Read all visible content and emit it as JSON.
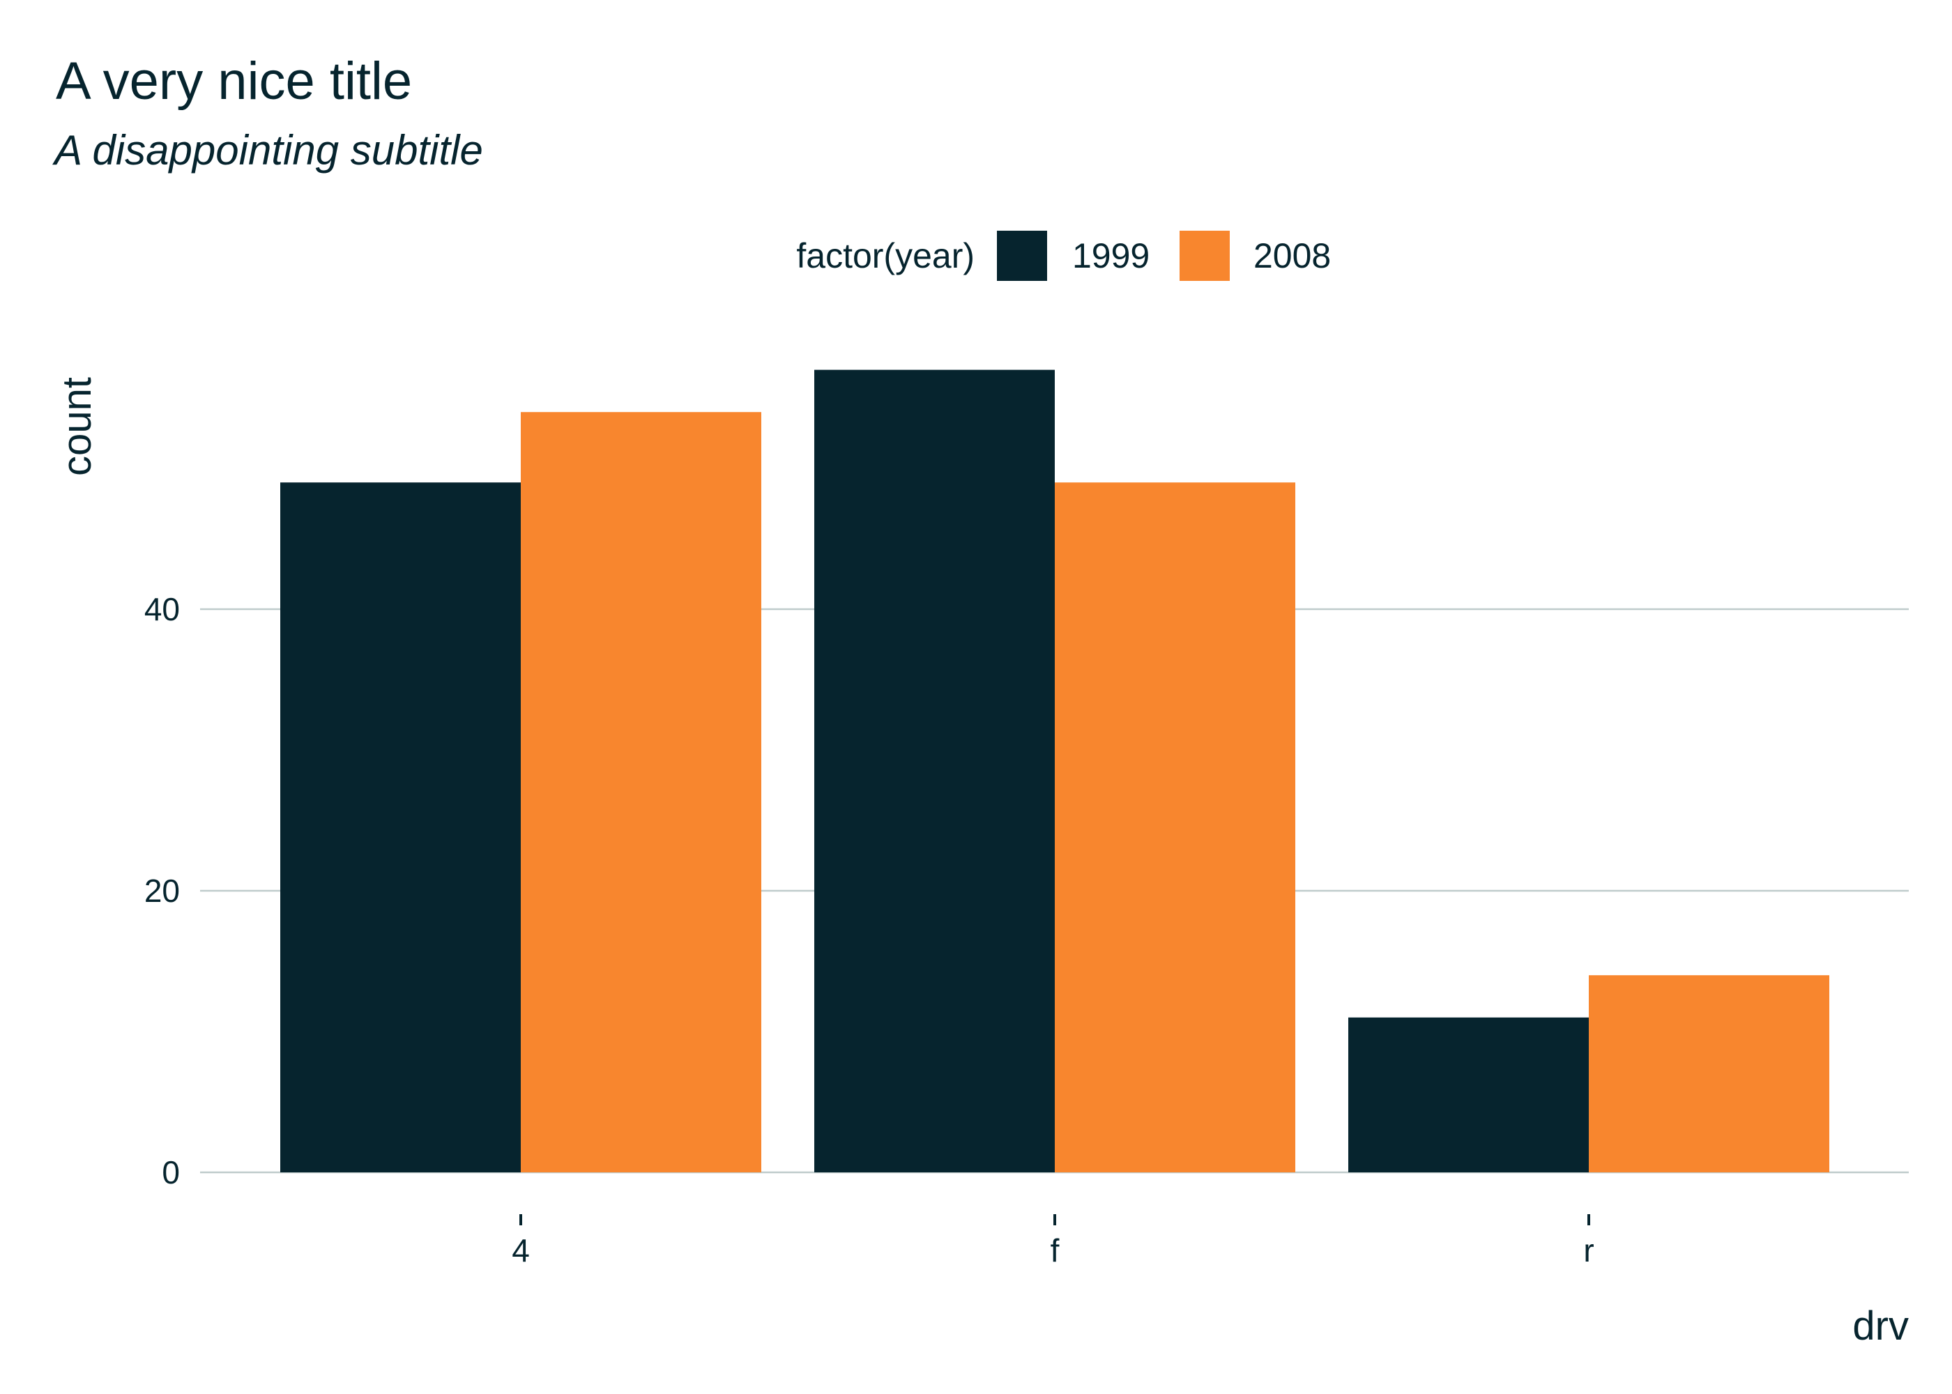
{
  "chart_data": {
    "type": "bar",
    "title": "A very nice title",
    "subtitle": "A disappointing subtitle",
    "xlabel": "drv",
    "ylabel": "count",
    "categories": [
      "4",
      "f",
      "r"
    ],
    "series": [
      {
        "name": "1999",
        "values": [
          49,
          57,
          11
        ],
        "color": "#06242e"
      },
      {
        "name": "2008",
        "values": [
          54,
          49,
          14
        ],
        "color": "#f8862e"
      }
    ],
    "legend": {
      "title": "factor(year)",
      "placement": "top"
    },
    "ylim": [
      0,
      59
    ],
    "yticks": [
      0,
      20,
      40
    ],
    "grid": "horizontal",
    "grid_color": "#bfcbcb"
  }
}
